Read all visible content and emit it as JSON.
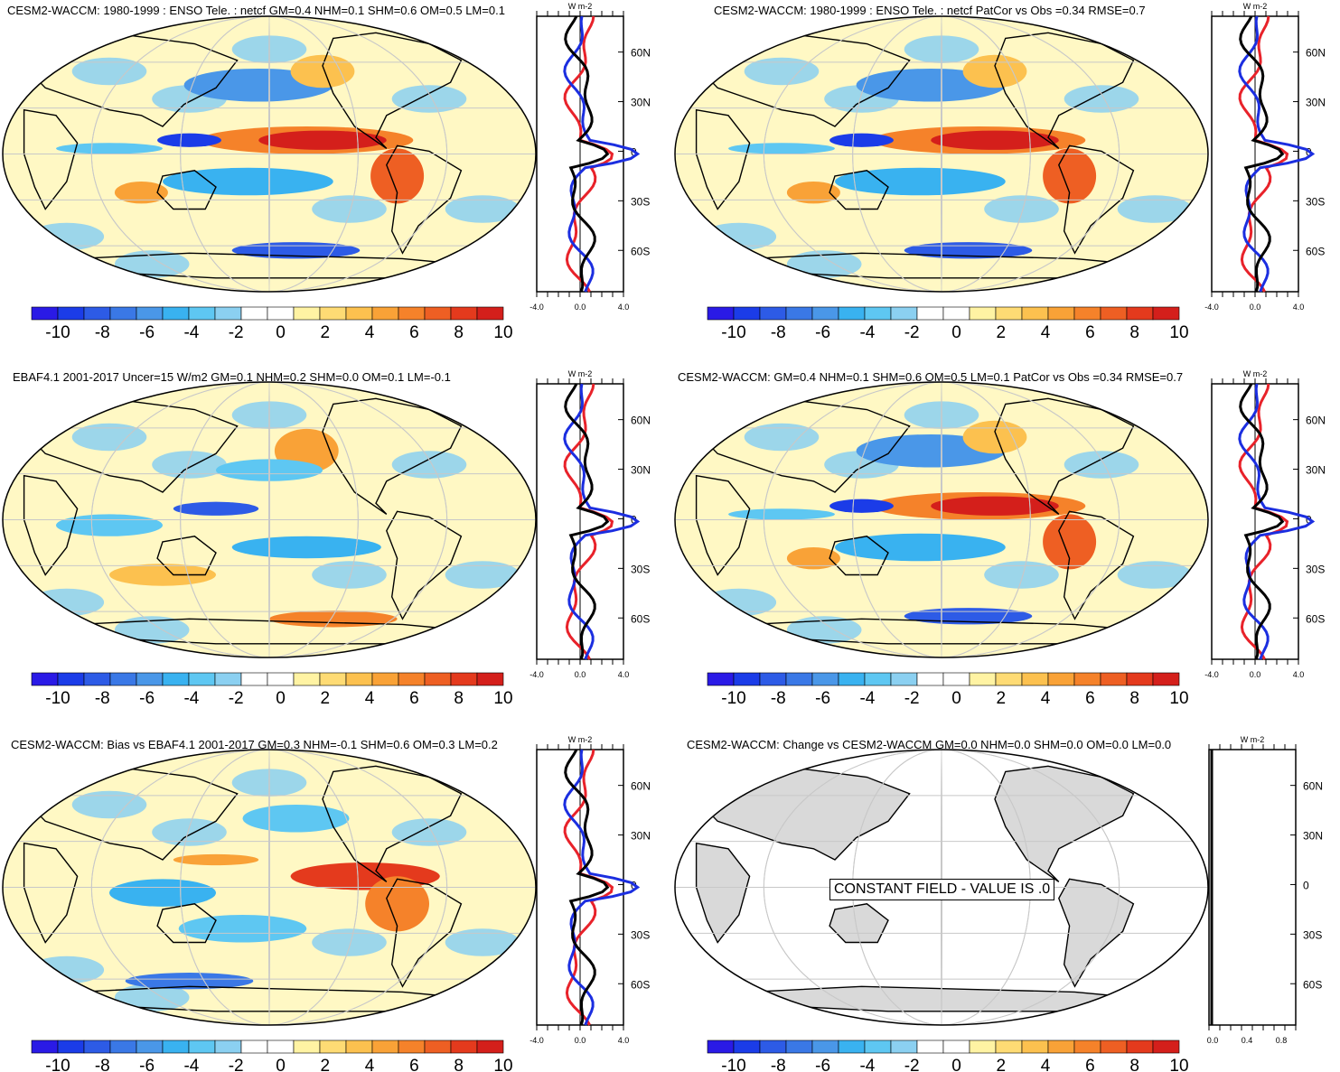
{
  "colors": {
    "levels": [
      "#2a1ae6",
      "#1b3ce8",
      "#2d5be6",
      "#3a78e6",
      "#4a97e8",
      "#39b2f0",
      "#5ec7f2",
      "#8bd0f1",
      "#ffffff",
      "#ffffff",
      "#fff3a3",
      "#fedb74",
      "#fcc14f",
      "#f9a237",
      "#f5822a",
      "#ee5f23",
      "#e43a1d",
      "#d41f1b"
    ],
    "land": "#d9d9d9",
    "grid": "#c8c8c8",
    "line_red": "#e8222a",
    "line_blue": "#1b2ee0",
    "line_black": "#000000"
  },
  "colorbar": {
    "labels": [
      "-10",
      "-8",
      "-6",
      "-4",
      "-2",
      "0",
      "2",
      "4",
      "6",
      "8",
      "10"
    ]
  },
  "profile": {
    "unit": "W m-2",
    "lat_labels": [
      "60N",
      "30N",
      "0",
      "30S",
      "60S"
    ],
    "x_labels_default": [
      "-4.0",
      "0.0",
      "4.0"
    ],
    "x_labels_const": [
      "0.0",
      "0.4",
      "0.8"
    ]
  },
  "panels": [
    {
      "title": "CESM2-WACCM: 1980-1999 : ENSO Tele. : netcf GM=0.4 NHM=0.1 SHM=0.6 OM=0.5 LM=0.1",
      "kind": "model"
    },
    {
      "title": "CESM2-WACCM: 1980-1999 : ENSO Tele. : netcf PatCor vs Obs =0.34 RMSE=0.7",
      "kind": "model"
    },
    {
      "title": "EBAF4.1 2001-2017 Uncer=15 W/m2 GM=0.1 NHM=0.2 SHM=0.0 OM=0.1 LM=-0.1",
      "kind": "obs"
    },
    {
      "title": "CESM2-WACCM: GM=0.4 NHM=0.1 SHM=0.6 OM=0.5 LM=0.1 PatCor vs Obs =0.34 RMSE=0.7",
      "kind": "model"
    },
    {
      "title": "CESM2-WACCM: Bias vs EBAF4.1 2001-2017 GM=0.3 NHM=-0.1 SHM=0.6 OM=0.3 LM=0.2",
      "kind": "bias"
    },
    {
      "title": "CESM2-WACCM: Change vs CESM2-WACCM GM=0.0 NHM=0.0 SHM=0.0 OM=0.0 LM=0.0",
      "kind": "const",
      "const_label": "CONSTANT FIELD - VALUE IS .0"
    }
  ]
}
